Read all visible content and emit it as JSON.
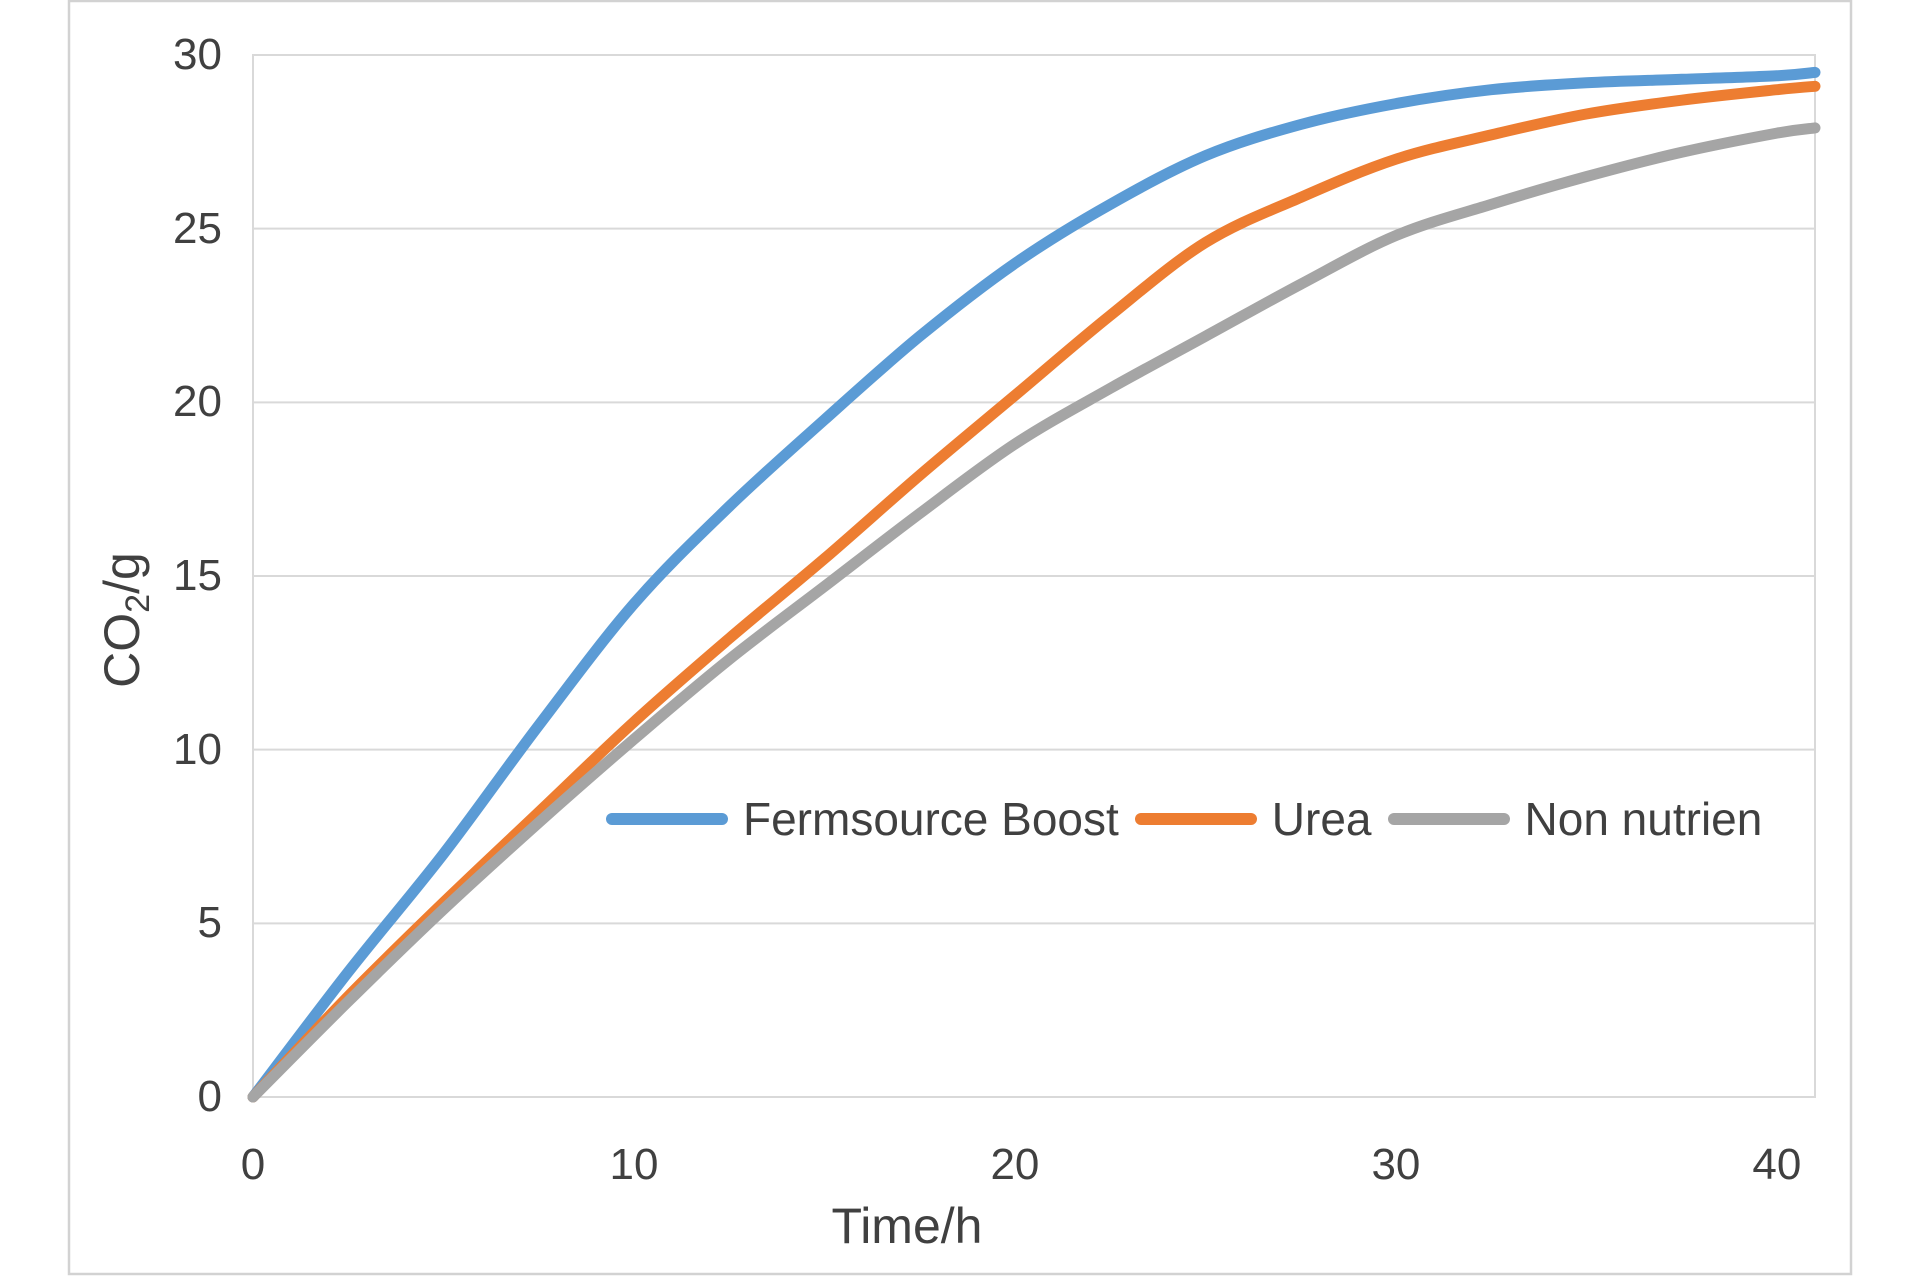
{
  "chart_data": {
    "type": "line",
    "title": "",
    "xlabel": "Time/h",
    "ylabel": "CO2/g",
    "ylabel_parts": {
      "base": "CO",
      "sub": "2",
      "rest": "/g"
    },
    "xlim": [
      0,
      41
    ],
    "ylim": [
      0,
      30
    ],
    "x_ticks": [
      "0",
      "10",
      "20",
      "30",
      "40"
    ],
    "x_tick_values": [
      0,
      10,
      20,
      30,
      40
    ],
    "y_ticks": [
      "0",
      "5",
      "10",
      "15",
      "20",
      "25",
      "30"
    ],
    "y_tick_values": [
      0,
      5,
      10,
      15,
      20,
      25,
      30
    ],
    "grid": "horizontal",
    "legend_position": "inside-lower-center",
    "x": [
      0,
      2.5,
      5,
      7.5,
      10,
      12.5,
      15,
      17.5,
      20,
      22.5,
      25,
      27.5,
      30,
      32.5,
      35,
      37.5,
      40,
      41
    ],
    "series": [
      {
        "name": "Fermsource Boost",
        "color": "#5B9BD5",
        "values": [
          0,
          3.6,
          7.0,
          10.7,
          14.2,
          17.0,
          19.5,
          21.9,
          24.0,
          25.7,
          27.1,
          28.0,
          28.6,
          29.0,
          29.2,
          29.3,
          29.4,
          29.5
        ]
      },
      {
        "name": "Urea",
        "color": "#ED7D31",
        "values": [
          0,
          2.9,
          5.6,
          8.2,
          10.8,
          13.2,
          15.5,
          17.9,
          20.2,
          22.5,
          24.6,
          25.9,
          27.0,
          27.7,
          28.3,
          28.7,
          29.0,
          29.1
        ]
      },
      {
        "name": "Non nutrien",
        "color": "#A5A5A5",
        "values": [
          0,
          2.75,
          5.4,
          7.9,
          10.3,
          12.6,
          14.7,
          16.8,
          18.8,
          20.4,
          21.9,
          23.4,
          24.8,
          25.7,
          26.5,
          27.2,
          27.75,
          27.9
        ]
      }
    ],
    "colors": {
      "text": "#404040",
      "gridline": "#D9D9D9",
      "plot_border": "#D9D9D9",
      "outer_frame": "#D2D2D2",
      "background": "#FFFFFF"
    }
  }
}
